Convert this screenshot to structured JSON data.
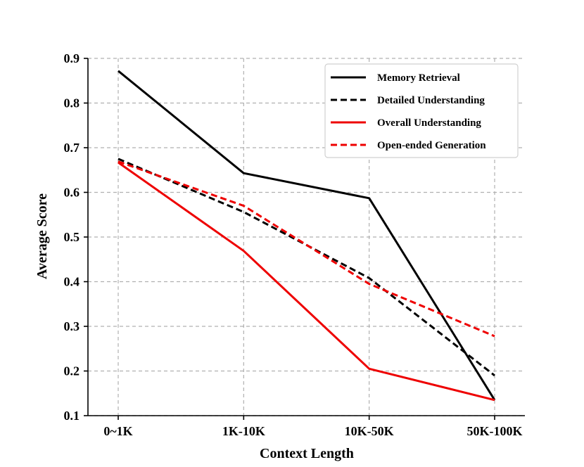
{
  "chart_data": {
    "type": "line",
    "categories": [
      "0~1K",
      "1K-10K",
      "10K-50K",
      "50K-100K"
    ],
    "series": [
      {
        "name": "Memory Retrieval",
        "color": "#000000",
        "dashed": false,
        "values": [
          0.872,
          0.643,
          0.587,
          0.135
        ]
      },
      {
        "name": "Detailed Understanding",
        "color": "#000000",
        "dashed": true,
        "values": [
          0.675,
          0.556,
          0.408,
          0.19
        ]
      },
      {
        "name": "Overall Understanding",
        "color": "#ee0000",
        "dashed": false,
        "values": [
          0.667,
          0.469,
          0.205,
          0.135
        ]
      },
      {
        "name": "Open-ended Generation",
        "color": "#ee0000",
        "dashed": true,
        "values": [
          0.669,
          0.57,
          0.395,
          0.278
        ]
      }
    ],
    "title": "",
    "xlabel": "Context Length",
    "ylabel": "Average Score",
    "ylim": [
      0.1,
      0.9
    ],
    "yticks": [
      "0.1",
      "0.2",
      "0.3",
      "0.4",
      "0.5",
      "0.6",
      "0.7",
      "0.8",
      "0.9"
    ],
    "grid": true,
    "legend_position": "top-right"
  }
}
